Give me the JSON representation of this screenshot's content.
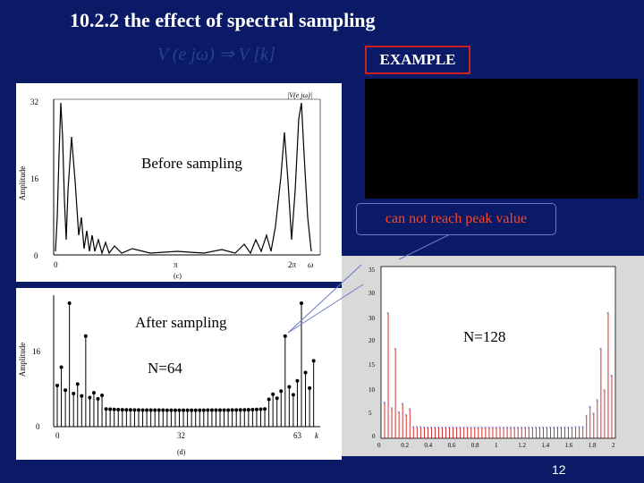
{
  "slide": {
    "title": "10.2.2 the effect of spectral sampling",
    "formula": "V (e jω) ⇒ V [k]",
    "example_label": "EXAMPLE",
    "callout": "can not reach peak value",
    "page_number": "12"
  },
  "plot_before": {
    "ylabel": "Amplitude",
    "yticks": [
      "32",
      "16",
      "0"
    ],
    "xticks": [
      "0",
      "π",
      "2π"
    ],
    "xvar": "ω",
    "curve_label": "|V(e jω)|",
    "caption": "(c)",
    "annotation": "Before sampling"
  },
  "plot_after": {
    "ylabel": "Amplitude",
    "yticks": [
      "16",
      "0"
    ],
    "xticks": [
      "0",
      "32",
      "63"
    ],
    "xvar": "k",
    "caption": "(d)",
    "annotation": "After sampling",
    "annotation2": "N=64"
  },
  "plot_n128": {
    "yticks": [
      "30",
      "25",
      "20",
      "15",
      "10",
      "5",
      "0"
    ],
    "yticks_top": [
      "35",
      "30"
    ],
    "xticks": [
      "0",
      "0.2",
      "0.4",
      "0.6",
      "0.8",
      "1",
      "1.2",
      "1.4",
      "1.6",
      "1.8",
      "2"
    ],
    "annotation": "N=128"
  }
}
